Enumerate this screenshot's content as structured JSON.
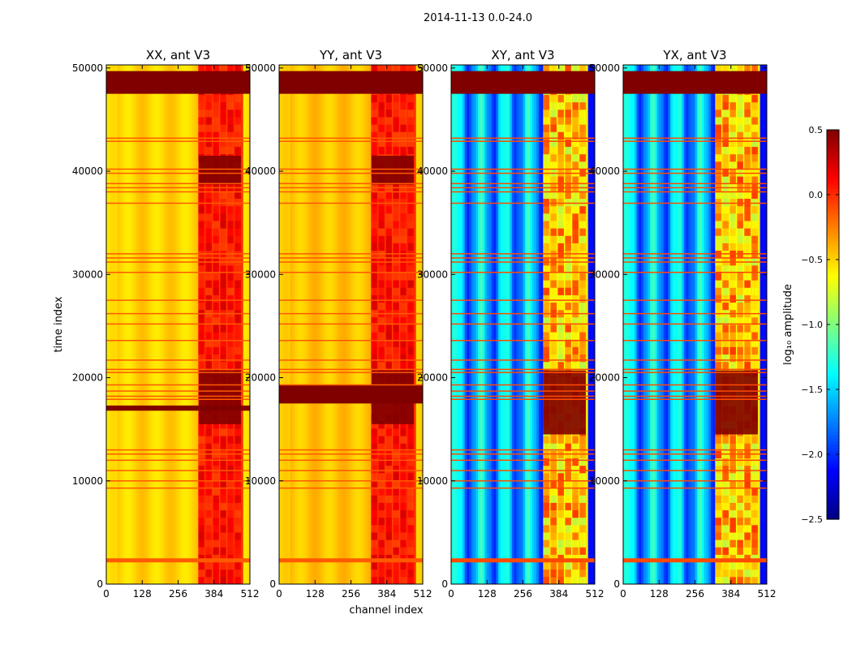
{
  "chart_data": {
    "type": "heatmap",
    "suptitle": "2014-11-13 0.0-24.0",
    "xlabel": "channel index",
    "ylabel": "time index",
    "x_ticks": [
      0,
      128,
      256,
      384,
      512
    ],
    "y_ticks": [
      0,
      10000,
      20000,
      30000,
      40000,
      50000
    ],
    "xlim": [
      0,
      512
    ],
    "ylim": [
      0,
      50300
    ],
    "colorbar": {
      "label": "log₁₀ amplitude",
      "range": [
        -2.5,
        0.5
      ],
      "ticks": [
        -2.5,
        -2.0,
        -1.5,
        -1.0,
        -0.5,
        0.0,
        0.5
      ],
      "colormap": "jet"
    },
    "panels": [
      {
        "title": "XX, ant V3",
        "kind": "auto",
        "base_level": -0.5,
        "rfi_channel_range": [
          328,
          512
        ],
        "rfi_level": 0.05,
        "saturated_blocks": [
          {
            "t0": 47500,
            "t1": 49700,
            "c0": 0,
            "c1": 512
          },
          {
            "t0": 15500,
            "t1": 20700,
            "c0": 330,
            "c1": 480
          },
          {
            "t0": 16800,
            "t1": 17300,
            "c0": 0,
            "c1": 512
          },
          {
            "t0": 38700,
            "t1": 41500,
            "c0": 330,
            "c1": 480
          }
        ],
        "flagged_rows": [
          43200,
          42900,
          40200,
          39800,
          38800,
          38400,
          38000,
          36900,
          32000,
          31600,
          31200,
          30200,
          27500,
          26200,
          25200,
          23600,
          21700,
          20800,
          20500,
          19300,
          18700,
          18200,
          17900,
          13000,
          12600,
          12000,
          11000,
          10000,
          9300,
          2300
        ]
      },
      {
        "title": "YY, ant V3",
        "kind": "auto",
        "base_level": -0.45,
        "rfi_channel_range": [
          328,
          512
        ],
        "rfi_level": 0.05,
        "saturated_blocks": [
          {
            "t0": 47500,
            "t1": 49700,
            "c0": 0,
            "c1": 512
          },
          {
            "t0": 17500,
            "t1": 19300,
            "c0": 0,
            "c1": 512
          },
          {
            "t0": 15500,
            "t1": 20700,
            "c0": 330,
            "c1": 480
          },
          {
            "t0": 38700,
            "t1": 41500,
            "c0": 330,
            "c1": 480
          }
        ],
        "flagged_rows": [
          43200,
          42900,
          40200,
          39800,
          38800,
          38400,
          38000,
          36900,
          32000,
          31600,
          31200,
          30200,
          27500,
          26200,
          25200,
          23600,
          21700,
          20800,
          20500,
          19300,
          13000,
          12600,
          12000,
          11000,
          10000,
          9300,
          2300
        ]
      },
      {
        "title": "XY, ant V3",
        "kind": "cross",
        "base_level": -1.6,
        "rfi_channel_range": [
          328,
          512
        ],
        "rfi_level": -0.5,
        "saturated_blocks": [
          {
            "t0": 47500,
            "t1": 49700,
            "c0": 0,
            "c1": 512
          },
          {
            "t0": 14500,
            "t1": 20700,
            "c0": 328,
            "c1": 480
          }
        ],
        "flagged_rows": [
          43200,
          42900,
          40200,
          39800,
          38800,
          38400,
          38000,
          36900,
          32000,
          31600,
          31200,
          30200,
          27500,
          26200,
          25200,
          23600,
          21700,
          20800,
          20500,
          19300,
          18700,
          18200,
          17900,
          13000,
          12600,
          12000,
          11000,
          10000,
          9300,
          2300
        ]
      },
      {
        "title": "YX, ant V3",
        "kind": "cross",
        "base_level": -1.6,
        "rfi_channel_range": [
          328,
          512
        ],
        "rfi_level": -0.5,
        "saturated_blocks": [
          {
            "t0": 47500,
            "t1": 49700,
            "c0": 0,
            "c1": 512
          },
          {
            "t0": 14500,
            "t1": 20700,
            "c0": 328,
            "c1": 480
          }
        ],
        "flagged_rows": [
          43200,
          42900,
          40200,
          39800,
          38800,
          38400,
          38000,
          36900,
          32000,
          31600,
          31200,
          30200,
          27500,
          26200,
          25200,
          23600,
          21700,
          20800,
          20500,
          19300,
          18700,
          18200,
          17900,
          13000,
          12600,
          12000,
          11000,
          10000,
          9300,
          2300
        ]
      }
    ]
  }
}
